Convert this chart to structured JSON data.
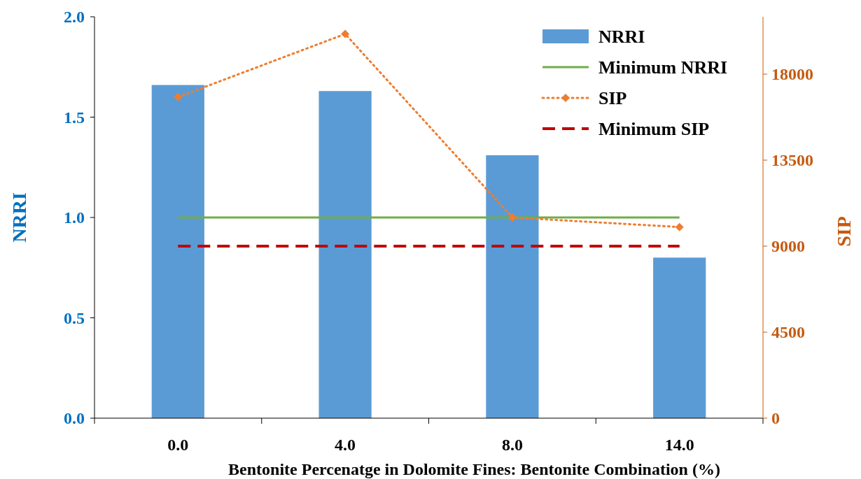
{
  "chart_data": {
    "type": "bar",
    "xlabel": "Bentonite Percenatge in Dolomite Fines: Bentonite Combination (%)",
    "ylabel": "NRRI",
    "y2label": "SIP",
    "categories": [
      "0.0",
      "4.0",
      "8.0",
      "14.0"
    ],
    "ylim": [
      0,
      2
    ],
    "yticks": [
      {
        "value": 0,
        "label": "0.0"
      },
      {
        "value": 0.5,
        "label": "0.5"
      },
      {
        "value": 1,
        "label": "1.0"
      },
      {
        "value": 1.5,
        "label": "1.5"
      },
      {
        "value": 2,
        "label": "2.0"
      }
    ],
    "y2lim": [
      0,
      21000
    ],
    "y2ticks": [
      0,
      4500,
      9000,
      13500,
      18000
    ],
    "grid": false,
    "legend": "top right",
    "series": [
      {
        "name": "NRRI",
        "color": "#5b9bd5",
        "values": [
          1.66,
          1.63,
          1.31,
          0.8
        ]
      },
      {
        "name": "Minimum NRRI",
        "type": "line",
        "color": "#70ad47",
        "line_style": "solid",
        "marker": "none",
        "values": [
          1,
          1,
          1,
          1
        ]
      },
      {
        "name": "SIP",
        "type": "line",
        "axis": "y2",
        "color": "#ed7d31",
        "line_style": "dotted",
        "marker": "diamond",
        "values": [
          16800,
          20100,
          10500,
          10000
        ]
      },
      {
        "name": "Minimum SIP",
        "type": "line",
        "axis": "y2",
        "color": "#c00000",
        "line_style": "dashed",
        "marker": "none",
        "values": [
          9000,
          9000,
          9000,
          9000
        ]
      }
    ]
  }
}
